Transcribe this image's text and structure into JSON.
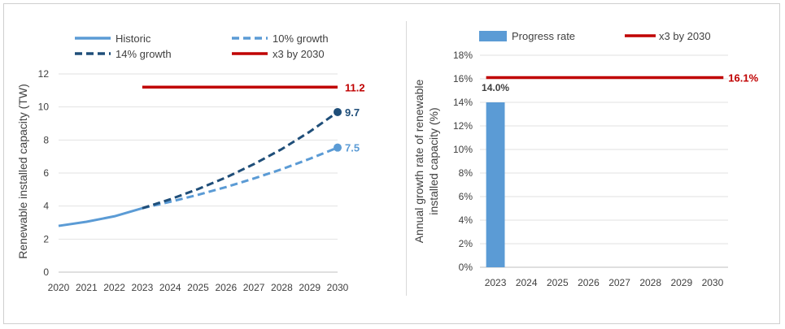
{
  "chart_data": [
    {
      "type": "line",
      "title": "",
      "xlabel": "",
      "ylabel": "Renewable installed capacity (TW)",
      "x": [
        2020,
        2021,
        2022,
        2023,
        2024,
        2025,
        2026,
        2027,
        2028,
        2029,
        2030
      ],
      "xlim": [
        2020,
        2030
      ],
      "ylim": [
        0,
        12
      ],
      "yticks": [
        "0",
        "2",
        "4",
        "6",
        "8",
        "10",
        "12"
      ],
      "xticks": [
        "2020",
        "2021",
        "2022",
        "2023",
        "2024",
        "2025",
        "2026",
        "2027",
        "2028",
        "2029",
        "2030"
      ],
      "grid": true,
      "legend_position": "top",
      "series": [
        {
          "name": "Historic",
          "style": "solid",
          "color": "#5b9bd5",
          "points": [
            [
              2020,
              2.8
            ],
            [
              2021,
              3.05
            ],
            [
              2022,
              3.38
            ],
            [
              2023,
              3.87
            ]
          ]
        },
        {
          "name": "10% growth",
          "style": "dashed",
          "color": "#5b9bd5",
          "points": [
            [
              2023,
              3.87
            ],
            [
              2024,
              4.26
            ],
            [
              2025,
              4.68
            ],
            [
              2026,
              5.15
            ],
            [
              2027,
              5.67
            ],
            [
              2028,
              6.23
            ],
            [
              2029,
              6.86
            ],
            [
              2030,
              7.54
            ]
          ],
          "end_label": "7.5"
        },
        {
          "name": "14% growth",
          "style": "dashed",
          "color": "#1f4e79",
          "points": [
            [
              2023,
              3.87
            ],
            [
              2024,
              4.41
            ],
            [
              2025,
              5.03
            ],
            [
              2026,
              5.73
            ],
            [
              2027,
              6.54
            ],
            [
              2028,
              7.45
            ],
            [
              2029,
              8.5
            ],
            [
              2030,
              9.69
            ]
          ],
          "end_label": "9.7"
        },
        {
          "name": "x3 by 2030",
          "style": "solid",
          "color": "#c00000",
          "points": [
            [
              2023,
              11.2
            ],
            [
              2030,
              11.2
            ]
          ],
          "end_label": "11.2"
        }
      ]
    },
    {
      "type": "bar",
      "title": "",
      "xlabel": "",
      "ylabel": "Annual growth rate of renewable installed capacity (%)",
      "ylabel_lines": [
        "Annual growth rate of renewable",
        "installed capacity (%)"
      ],
      "categories": [
        "2023",
        "2024",
        "2025",
        "2026",
        "2027",
        "2028",
        "2029",
        "2030"
      ],
      "ylim": [
        0,
        18
      ],
      "yticks": [
        "0%",
        "2%",
        "4%",
        "6%",
        "8%",
        "10%",
        "12%",
        "14%",
        "16%",
        "18%"
      ],
      "grid": true,
      "legend_position": "top",
      "series": [
        {
          "name": "Progress rate",
          "color": "#5b9bd5",
          "values": [
            14.0,
            null,
            null,
            null,
            null,
            null,
            null,
            null
          ],
          "labels": [
            "14.0%"
          ]
        },
        {
          "name": "x3 by 2030",
          "color": "#c00000",
          "type": "line",
          "value": 16.1,
          "label": "16.1%"
        }
      ]
    }
  ]
}
